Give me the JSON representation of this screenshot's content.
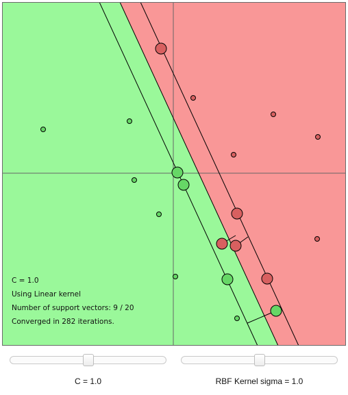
{
  "plot": {
    "colors": {
      "positive_region": "#9af89a",
      "negative_region": "#f99797",
      "positive_point": "#66d766",
      "negative_point": "#d86060",
      "border": "#6a6a6a"
    },
    "info": {
      "c_line": "C = 1.0",
      "kernel_line": "Using Linear kernel",
      "support_line": "Number of support vectors: 9 / 20",
      "converged_line": "Converged in 282 iterations."
    }
  },
  "controls": {
    "c_slider": {
      "label": "C = 1.0",
      "value_fraction": 0.5
    },
    "sigma_slider": {
      "label": "RBF Kernel sigma = 1.0",
      "value_fraction": 0.5
    }
  }
}
